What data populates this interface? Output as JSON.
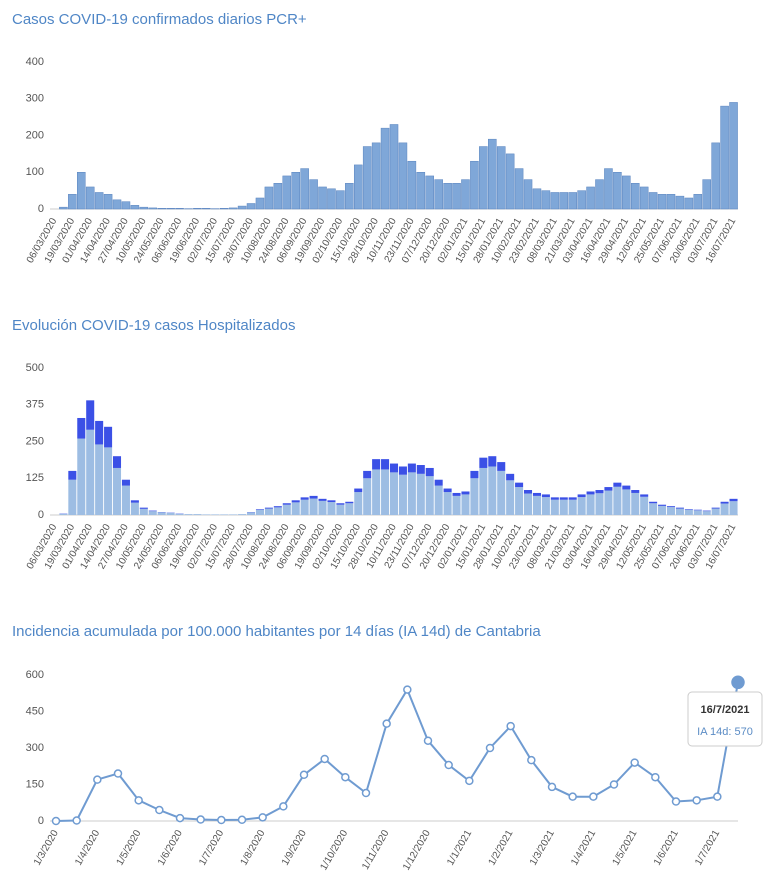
{
  "chart_data": [
    {
      "type": "bar",
      "title": "Casos COVID-19 confirmados diarios PCR+",
      "categories": [
        "06/03/2020",
        null,
        "19/03/2020",
        null,
        "01/04/2020",
        null,
        "14/04/2020",
        null,
        "27/04/2020",
        null,
        "10/05/2020",
        null,
        "24/05/2020",
        null,
        "06/06/2020",
        null,
        "19/06/2020",
        null,
        "02/07/2020",
        null,
        "15/07/2020",
        null,
        "28/07/2020",
        null,
        "10/08/2020",
        null,
        "24/08/2020",
        null,
        "06/09/2020",
        null,
        "19/09/2020",
        null,
        "02/10/2020",
        null,
        "15/10/2020",
        null,
        "28/10/2020",
        null,
        "10/11/2020",
        null,
        "23/11/2020",
        null,
        "07/12/2020",
        null,
        "20/12/2020",
        null,
        "02/01/2021",
        null,
        "15/01/2021",
        null,
        "28/01/2021",
        null,
        "10/02/2021",
        null,
        "23/02/2021",
        null,
        "08/03/2021",
        null,
        "21/03/2021",
        null,
        "03/04/2021",
        null,
        "16/04/2021",
        null,
        "29/04/2021",
        null,
        "12/05/2021",
        null,
        "25/05/2021",
        null,
        "07/06/2021",
        null,
        "20/06/2021",
        null,
        "03/07/2021",
        null,
        "16/07/2021"
      ],
      "series": [
        {
          "color": "#7fa7d8",
          "values": [
            0,
            5,
            40,
            100,
            60,
            45,
            40,
            25,
            20,
            10,
            5,
            3,
            2,
            2,
            2,
            1,
            2,
            2,
            1,
            2,
            3,
            8,
            15,
            30,
            60,
            70,
            90,
            100,
            110,
            80,
            60,
            55,
            50,
            70,
            120,
            170,
            180,
            220,
            230,
            180,
            130,
            100,
            90,
            80,
            70,
            70,
            80,
            130,
            170,
            190,
            170,
            150,
            110,
            80,
            55,
            50,
            45,
            45,
            45,
            50,
            60,
            80,
            110,
            100,
            90,
            70,
            60,
            45,
            40,
            40,
            35,
            30,
            40,
            80,
            180,
            280,
            290
          ]
        }
      ],
      "ylim": [
        0,
        400
      ],
      "yticks": [
        0,
        100,
        200,
        300,
        400
      ],
      "grid": false
    },
    {
      "type": "bar",
      "title": "Evolución COVID-19 casos  Hospitalizados",
      "stacked": true,
      "categories": [
        "06/03/2020",
        null,
        "19/03/2020",
        null,
        "01/04/2020",
        null,
        "14/04/2020",
        null,
        "27/04/2020",
        null,
        "10/05/2020",
        null,
        "24/05/2020",
        null,
        "06/06/2020",
        null,
        "19/06/2020",
        null,
        "02/07/2020",
        null,
        "15/07/2020",
        null,
        "28/07/2020",
        null,
        "10/08/2020",
        null,
        "24/08/2020",
        null,
        "06/09/2020",
        null,
        "19/09/2020",
        null,
        "02/10/2020",
        null,
        "15/10/2020",
        null,
        "28/10/2020",
        null,
        "10/11/2020",
        null,
        "23/11/2020",
        null,
        "07/12/2020",
        null,
        "20/12/2020",
        null,
        "02/01/2021",
        null,
        "15/01/2021",
        null,
        "28/01/2021",
        null,
        "10/02/2021",
        null,
        "23/02/2021",
        null,
        "08/03/2021",
        null,
        "21/03/2021",
        null,
        "03/04/2021",
        null,
        "16/04/2021",
        null,
        "29/04/2021",
        null,
        "12/05/2021",
        null,
        "25/05/2021",
        null,
        "07/06/2021",
        null,
        "20/06/2021",
        null,
        "03/07/2021",
        null,
        "16/07/2021"
      ],
      "series": [
        {
          "color": "#9dbde3",
          "values": [
            0,
            4,
            120,
            260,
            290,
            240,
            230,
            160,
            100,
            42,
            21,
            13,
            9,
            7,
            4,
            3,
            3,
            2,
            2,
            2,
            2,
            3,
            9,
            18,
            22,
            26,
            35,
            43,
            52,
            56,
            48,
            44,
            35,
            40,
            78,
            125,
            155,
            155,
            145,
            137,
            145,
            140,
            132,
            100,
            78,
            65,
            70,
            125,
            160,
            165,
            150,
            118,
            95,
            73,
            65,
            61,
            52,
            52,
            52,
            61,
            70,
            74,
            83,
            96,
            87,
            75,
            62,
            40,
            31,
            27,
            22,
            18,
            16,
            13,
            22,
            39,
            47
          ]
        },
        {
          "color": "#3b50e6",
          "values": [
            0,
            1,
            30,
            70,
            100,
            80,
            70,
            40,
            20,
            8,
            4,
            2,
            1,
            1,
            1,
            0,
            0,
            0,
            0,
            0,
            0,
            0,
            1,
            2,
            3,
            4,
            5,
            7,
            8,
            9,
            7,
            6,
            5,
            5,
            12,
            25,
            35,
            35,
            30,
            28,
            30,
            30,
            28,
            20,
            12,
            10,
            10,
            25,
            35,
            35,
            30,
            22,
            15,
            12,
            10,
            9,
            8,
            8,
            8,
            9,
            10,
            11,
            12,
            14,
            13,
            10,
            8,
            5,
            4,
            3,
            3,
            2,
            2,
            2,
            3,
            6,
            8
          ]
        }
      ],
      "ylim": [
        0,
        500
      ],
      "yticks": [
        0,
        125,
        250,
        375,
        500
      ],
      "grid": false
    },
    {
      "type": "line",
      "title": "Incidencia acumulada por 100.000 habitantes por 14 días (IA 14d) de Cantabria",
      "categories": [
        "1/3/2020",
        null,
        "1/4/2020",
        null,
        "1/5/2020",
        null,
        "1/6/2020",
        null,
        "1/7/2020",
        null,
        "1/8/2020",
        null,
        "1/9/2020",
        null,
        "1/10/2020",
        null,
        "1/11/2020",
        null,
        "1/12/2020",
        null,
        "1/1/2021",
        null,
        "1/2/2021",
        null,
        "1/3/2021",
        null,
        "1/4/2021",
        null,
        "1/5/2021",
        null,
        "1/6/2021",
        null,
        "1/7/2021",
        null
      ],
      "series": [
        {
          "color": "#6f9bd1",
          "values": [
            0,
            2,
            170,
            195,
            85,
            45,
            12,
            6,
            4,
            5,
            15,
            60,
            190,
            255,
            180,
            115,
            400,
            540,
            330,
            230,
            165,
            300,
            390,
            250,
            140,
            100,
            100,
            150,
            240,
            180,
            80,
            85,
            100,
            570
          ]
        }
      ],
      "ylim": [
        0,
        600
      ],
      "yticks": [
        0,
        150,
        300,
        450,
        600
      ],
      "grid": false,
      "tooltip": {
        "title": "16/7/2021",
        "text": "IA 14d: 570"
      }
    }
  ]
}
